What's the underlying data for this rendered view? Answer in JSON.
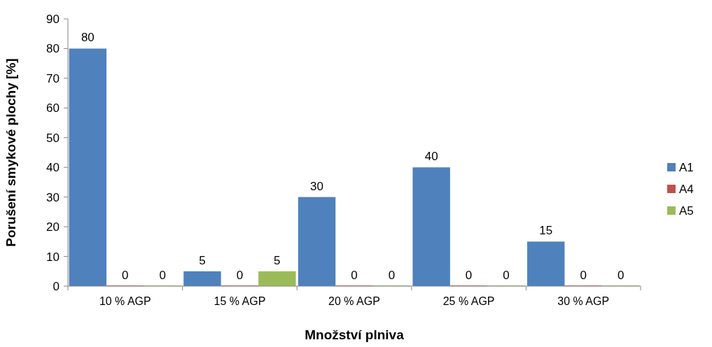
{
  "chart_data": {
    "type": "bar",
    "xlabel": "Množství plniva",
    "ylabel": "Porušení smykové plochy [%]",
    "categories": [
      "10 % AGP",
      "15 % AGP",
      "20 % AGP",
      "25 % AGP",
      "30 % AGP"
    ],
    "series": [
      {
        "name": "A1",
        "color": "#4f81bd",
        "values": [
          80,
          5,
          30,
          40,
          15
        ]
      },
      {
        "name": "A4",
        "color": "#c0504d",
        "values": [
          0,
          0,
          0,
          0,
          0
        ]
      },
      {
        "name": "A5",
        "color": "#9bbb59",
        "values": [
          0,
          5,
          0,
          0,
          0
        ]
      }
    ],
    "ylim": [
      0,
      90
    ],
    "yticks": [
      0,
      10,
      20,
      30,
      40,
      50,
      60,
      70,
      80,
      90
    ],
    "grid": false,
    "legend": "right",
    "data_labels": true
  }
}
